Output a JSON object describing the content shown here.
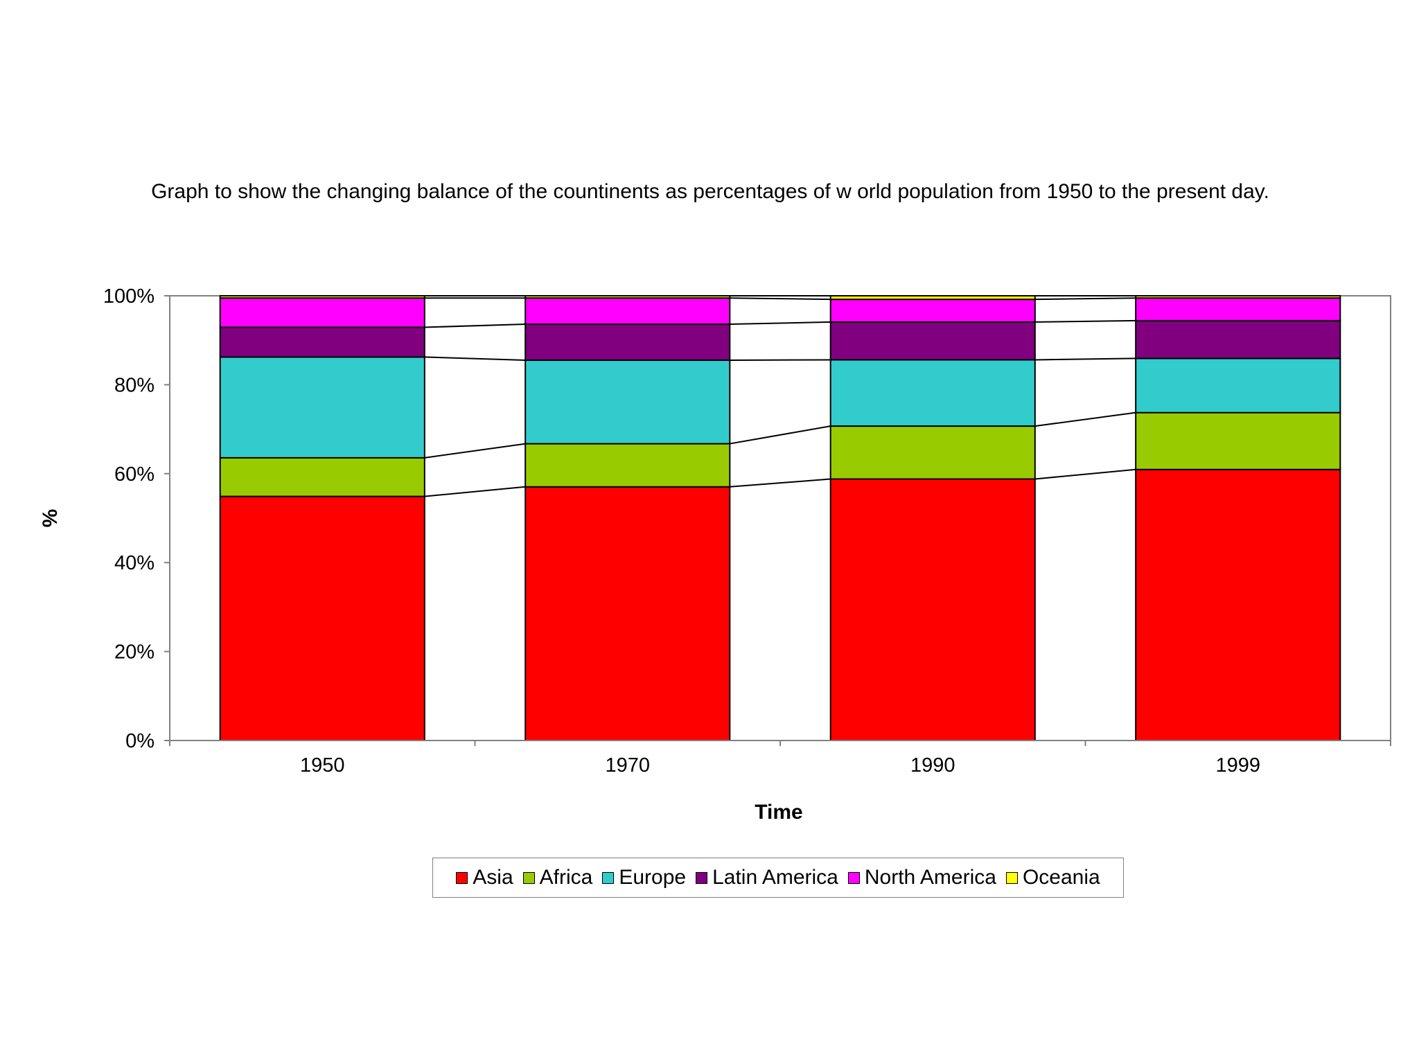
{
  "chart_data": {
    "type": "bar",
    "stacked": "percent",
    "title": "Graph to show  the changing balance of the countinents as percentages of w orld population from 1950 to the present day.",
    "xlabel": "Time",
    "ylabel": "%",
    "ylim": [
      0,
      100
    ],
    "yticks": [
      "0%",
      "20%",
      "40%",
      "60%",
      "80%",
      "100%"
    ],
    "categories": [
      "1950",
      "1970",
      "1990",
      "1999"
    ],
    "series": [
      {
        "name": "Asia",
        "color": "#ff0000",
        "values": [
          55.0,
          57.1,
          58.8,
          61.0
        ]
      },
      {
        "name": "Africa",
        "color": "#99cc00",
        "values": [
          8.7,
          9.7,
          11.9,
          12.8
        ]
      },
      {
        "name": "Europe",
        "color": "#33cccc",
        "values": [
          22.7,
          18.8,
          14.9,
          12.2
        ]
      },
      {
        "name": "Latin America",
        "color": "#800080",
        "values": [
          6.7,
          8.1,
          8.5,
          8.5
        ]
      },
      {
        "name": "North America",
        "color": "#ff00ff",
        "values": [
          6.6,
          5.9,
          5.1,
          5.1
        ]
      },
      {
        "name": "Oceania",
        "color": "#ffff00",
        "values": [
          0.5,
          0.5,
          0.8,
          0.5
        ]
      }
    ],
    "legend_position": "bottom"
  }
}
